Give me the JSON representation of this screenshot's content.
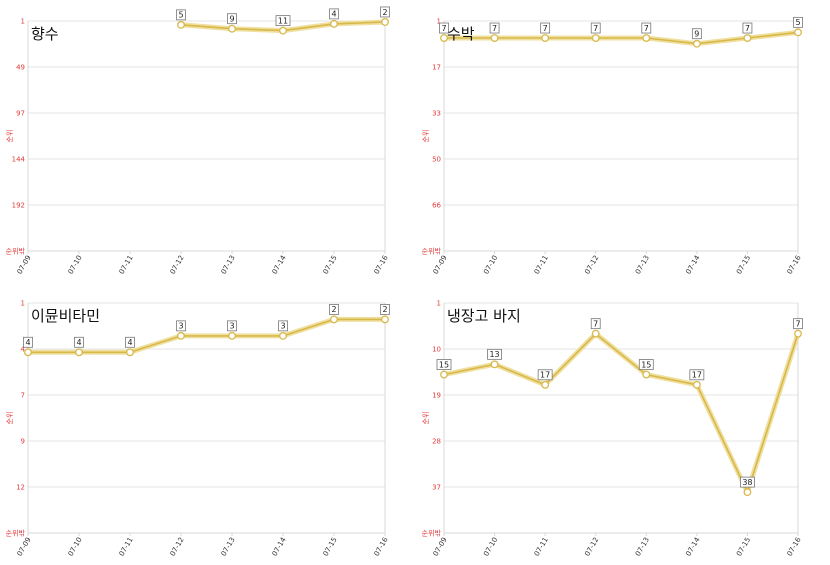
{
  "chart_data": [
    {
      "type": "line",
      "title": "향수",
      "ylabel": "순위",
      "y_ticks": [
        "1",
        "49",
        "97",
        "144",
        "192",
        "순위밖"
      ],
      "ylim": [
        1,
        240
      ],
      "y_inverted": true,
      "x": [
        "07-09",
        "07-10",
        "07-11",
        "07-12",
        "07-13",
        "07-14",
        "07-15",
        "07-16"
      ],
      "values": [
        null,
        null,
        null,
        5,
        9,
        11,
        4,
        2
      ],
      "colors": {
        "line": "#d9b84a",
        "halo": "#efe0a0"
      }
    },
    {
      "type": "line",
      "title": "수박",
      "ylabel": "순위",
      "y_ticks": [
        "1",
        "17",
        "33",
        "50",
        "66",
        "순위밖"
      ],
      "ylim": [
        1,
        82
      ],
      "y_inverted": true,
      "x": [
        "07-09",
        "07-10",
        "07-11",
        "07-12",
        "07-13",
        "07-14",
        "07-15",
        "07-16"
      ],
      "values": [
        7,
        7,
        7,
        7,
        7,
        9,
        7,
        5
      ],
      "colors": {
        "line": "#d9b84a",
        "halo": "#efe0a0"
      }
    },
    {
      "type": "line",
      "title": "이뮨비타민",
      "ylabel": "순위",
      "y_ticks": [
        "1",
        "4",
        "7",
        "9",
        "12",
        "순위밖"
      ],
      "ylim": [
        1,
        15
      ],
      "y_inverted": true,
      "x": [
        "07-09",
        "07-10",
        "07-11",
        "07-12",
        "07-13",
        "07-14",
        "07-15",
        "07-16"
      ],
      "values": [
        4,
        4,
        4,
        3,
        3,
        3,
        2,
        2
      ],
      "colors": {
        "line": "#d9b84a",
        "halo": "#efe0a0"
      }
    },
    {
      "type": "line",
      "title": "냉장고 바지",
      "ylabel": "순위",
      "y_ticks": [
        "1",
        "10",
        "19",
        "28",
        "37",
        "순위밖"
      ],
      "ylim": [
        1,
        46
      ],
      "y_inverted": true,
      "x": [
        "07-09",
        "07-10",
        "07-11",
        "07-12",
        "07-13",
        "07-14",
        "07-15",
        "07-16"
      ],
      "values": [
        15,
        13,
        17,
        7,
        15,
        17,
        38,
        7
      ],
      "colors": {
        "line": "#d9b84a",
        "halo": "#efe0a0"
      }
    }
  ]
}
